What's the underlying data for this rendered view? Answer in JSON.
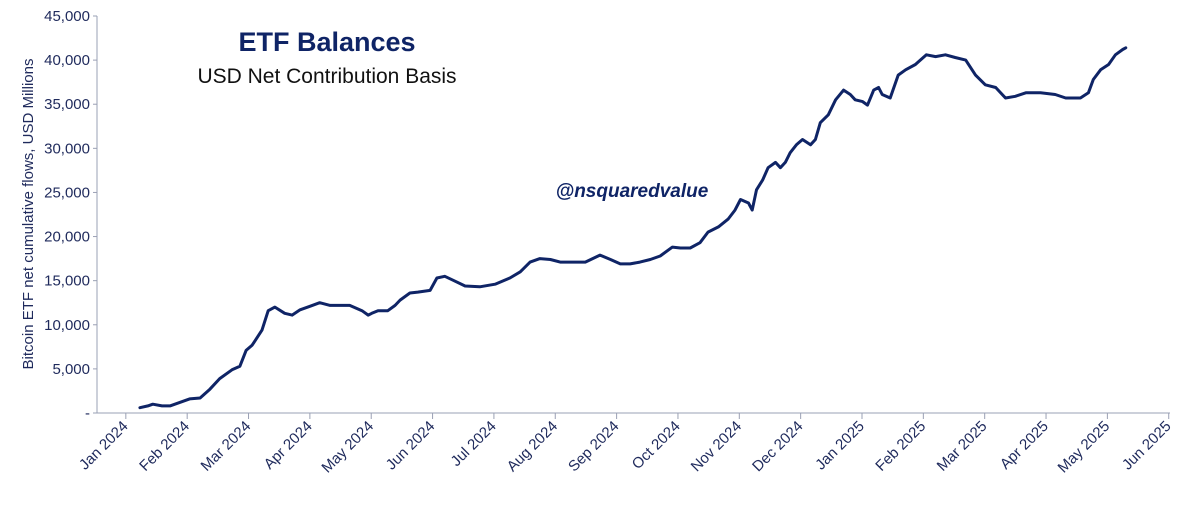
{
  "chart_data": {
    "type": "line",
    "title": "ETF Balances",
    "subtitle": "USD Net Contribution Basis",
    "y_label": "Bitcoin ETF net cumulative flows,  USD Millions",
    "annotation": "@nsquaredvalue",
    "color": "#0f2466",
    "xlim": [
      -0.47,
      17.2
    ],
    "xticks": [
      {
        "value": 0,
        "label": "Jan 2024"
      },
      {
        "value": 1,
        "label": "Feb 2024"
      },
      {
        "value": 2,
        "label": "Mar 2024"
      },
      {
        "value": 3,
        "label": "Apr 2024"
      },
      {
        "value": 4,
        "label": "May 2024"
      },
      {
        "value": 5,
        "label": "Jun 2024"
      },
      {
        "value": 6,
        "label": "Jul 2024"
      },
      {
        "value": 7,
        "label": "Aug 2024"
      },
      {
        "value": 8,
        "label": "Sep 2024"
      },
      {
        "value": 9,
        "label": "Oct 2024"
      },
      {
        "value": 10,
        "label": "Nov 2024"
      },
      {
        "value": 11,
        "label": "Dec 2024"
      },
      {
        "value": 12,
        "label": "Jan 2025"
      },
      {
        "value": 13,
        "label": "Feb 2025"
      },
      {
        "value": 14,
        "label": "Mar 2025"
      },
      {
        "value": 15,
        "label": "Apr 2025"
      },
      {
        "value": 16,
        "label": "May 2025"
      },
      {
        "value": 17,
        "label": "Jun 2025"
      }
    ],
    "ylim": [
      0,
      45000
    ],
    "yticks": [
      {
        "value": 0,
        "label": "-"
      },
      {
        "value": 5000,
        "label": "5,000"
      },
      {
        "value": 10000,
        "label": "10,000"
      },
      {
        "value": 15000,
        "label": "15,000"
      },
      {
        "value": 20000,
        "label": "20,000"
      },
      {
        "value": 25000,
        "label": "25,000"
      },
      {
        "value": 30000,
        "label": "30,000"
      },
      {
        "value": 35000,
        "label": "35,000"
      },
      {
        "value": 40000,
        "label": "40,000"
      },
      {
        "value": 45000,
        "label": "45,000"
      }
    ],
    "x": [
      0.23,
      0.36,
      0.44,
      0.59,
      0.72,
      0.88,
      1.04,
      1.21,
      1.37,
      1.53,
      1.73,
      1.86,
      1.96,
      2.06,
      2.22,
      2.32,
      2.43,
      2.59,
      2.71,
      2.84,
      3.0,
      3.16,
      3.33,
      3.49,
      3.65,
      3.85,
      3.95,
      4.01,
      4.11,
      4.27,
      4.39,
      4.47,
      4.63,
      4.76,
      4.96,
      5.07,
      5.2,
      5.32,
      5.53,
      5.77,
      6.02,
      6.26,
      6.43,
      6.59,
      6.75,
      6.92,
      7.08,
      7.24,
      7.49,
      7.73,
      7.9,
      8.06,
      8.22,
      8.38,
      8.55,
      8.71,
      8.91,
      9.04,
      9.2,
      9.36,
      9.49,
      9.66,
      9.82,
      9.93,
      10.02,
      10.15,
      10.21,
      10.28,
      10.38,
      10.47,
      10.59,
      10.67,
      10.75,
      10.83,
      10.93,
      11.03,
      11.16,
      11.24,
      11.32,
      11.45,
      11.57,
      11.7,
      11.81,
      11.89,
      12.01,
      12.09,
      12.19,
      12.27,
      12.33,
      12.46,
      12.59,
      12.71,
      12.87,
      12.95,
      13.05,
      13.2,
      13.36,
      13.52,
      13.69,
      13.85,
      14.01,
      14.18,
      14.34,
      14.5,
      14.67,
      14.91,
      15.15,
      15.32,
      15.56,
      15.69,
      15.77,
      15.89,
      16.02,
      16.13,
      16.25,
      16.3
    ],
    "values": [
      600,
      800,
      1000,
      800,
      800,
      1200,
      1600,
      1700,
      2700,
      3900,
      4900,
      5300,
      7100,
      7700,
      9400,
      11600,
      12000,
      11300,
      11100,
      11700,
      12100,
      12500,
      12200,
      12200,
      12200,
      11600,
      11100,
      11300,
      11600,
      11600,
      12200,
      12800,
      13600,
      13700,
      13900,
      15300,
      15500,
      15100,
      14400,
      14300,
      14600,
      15300,
      16000,
      17100,
      17500,
      17400,
      17100,
      17100,
      17100,
      17900,
      17400,
      16900,
      16900,
      17100,
      17400,
      17800,
      18800,
      18700,
      18700,
      19300,
      20500,
      21100,
      22000,
      23000,
      24200,
      23800,
      23000,
      25300,
      26400,
      27800,
      28400,
      27800,
      28400,
      29500,
      30400,
      31000,
      30400,
      31000,
      32900,
      33800,
      35500,
      36600,
      36100,
      35500,
      35300,
      34900,
      36600,
      36900,
      36100,
      35700,
      38300,
      38900,
      39500,
      40000,
      40600,
      40400,
      40600,
      40300,
      40000,
      38300,
      37200,
      36900,
      35700,
      35900,
      36300,
      36300,
      36100,
      35700,
      35700,
      36300,
      37800,
      38900,
      39500,
      40600,
      41200,
      41400
    ]
  }
}
